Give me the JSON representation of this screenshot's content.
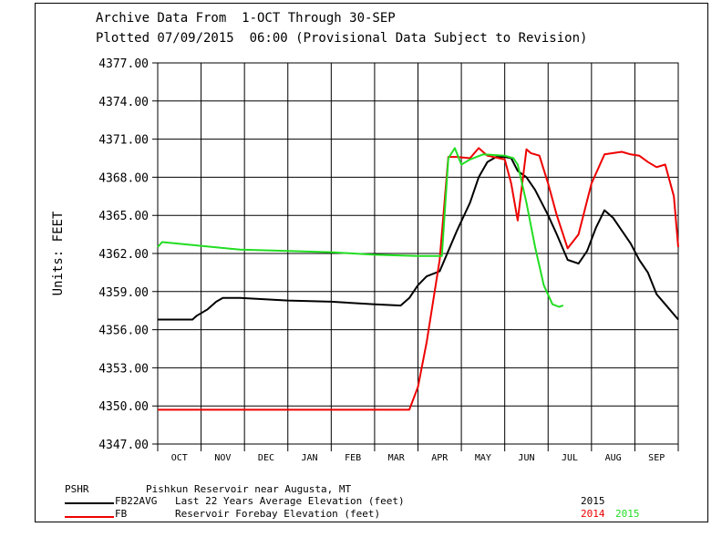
{
  "header": {
    "line1": "Archive Data From  1-OCT Through 30-SEP",
    "line2": "Plotted 07/09/2015  06:00 (Provisional Data Subject to Revision)"
  },
  "footer": {
    "station_code": "PSHR",
    "station_name": "Pishkun Reservoir near Augusta, MT",
    "legend": [
      {
        "code": "FB22AVG",
        "desc": "Last 22 Years Average Elevation (feet)",
        "color": "#000000",
        "years": [
          {
            "text": "2015",
            "color": "#000000"
          }
        ]
      },
      {
        "code": "FB",
        "desc": "Reservoir Forebay Elevation (feet)",
        "color": "#ee0000",
        "years": [
          {
            "text": "2014",
            "color": "#ee0000"
          },
          {
            "text": "2015",
            "color": "#22dd22"
          }
        ]
      }
    ]
  },
  "chart_data": {
    "type": "line",
    "ylabel": "Units:  FEET",
    "ylim": [
      4347,
      4377
    ],
    "y_ticks": [
      "4347.00",
      "4350.00",
      "4353.00",
      "4356.00",
      "4359.00",
      "4362.00",
      "4365.00",
      "4368.00",
      "4371.00",
      "4374.00",
      "4377.00"
    ],
    "months": [
      "OCT",
      "NOV",
      "DEC",
      "JAN",
      "FEB",
      "MAR",
      "APR",
      "MAY",
      "JUN",
      "JUL",
      "AUG",
      "SEP"
    ],
    "xlim": [
      0,
      12
    ],
    "grid": true,
    "series": [
      {
        "name": "Last 22 Years Average Elevation (feet)",
        "color": "#000000",
        "x": [
          0,
          0.8,
          0.9,
          1.15,
          1.35,
          1.5,
          1.9,
          3,
          4,
          5,
          5.6,
          5.8,
          5.9,
          6.0,
          6.2,
          6.5,
          6.7,
          6.9,
          7.2,
          7.4,
          7.6,
          7.8,
          8,
          8.15,
          8.3,
          8.5,
          8.7,
          9,
          9.2,
          9.45,
          9.7,
          9.9,
          10.1,
          10.3,
          10.5,
          10.7,
          10.9,
          11.1,
          11.3,
          11.5,
          11.7,
          12
        ],
        "y": [
          4356.8,
          4356.8,
          4357.1,
          4357.6,
          4358.2,
          4358.5,
          4358.5,
          4358.3,
          4358.2,
          4358.0,
          4357.9,
          4358.5,
          4359.0,
          4359.5,
          4360.2,
          4360.6,
          4362.2,
          4363.8,
          4366.0,
          4368.0,
          4369.2,
          4369.6,
          4369.6,
          4369.5,
          4368.5,
          4368.0,
          4367.0,
          4365.0,
          4363.5,
          4361.5,
          4361.2,
          4362.2,
          4364.0,
          4365.4,
          4364.8,
          4363.8,
          4362.8,
          4361.5,
          4360.5,
          4358.8,
          4358.0,
          4356.8
        ]
      },
      {
        "name": "Reservoir Forebay Elevation (feet) 2014",
        "color": "#ee0000",
        "x": [
          0,
          5.8,
          6.0,
          6.2,
          6.5,
          6.7,
          6.9,
          7.2,
          7.4,
          7.6,
          8,
          8.15,
          8.3,
          8.5,
          8.6,
          8.8,
          9,
          9.2,
          9.45,
          9.7,
          10,
          10.3,
          10.5,
          10.7,
          10.9,
          11.1,
          11.3,
          11.5,
          11.7,
          11.9,
          12
        ],
        "y": [
          4349.7,
          4349.7,
          4351.5,
          4355.0,
          4361.5,
          4369.6,
          4369.6,
          4369.5,
          4370.3,
          4369.7,
          4369.4,
          4367.5,
          4364.6,
          4370.2,
          4369.9,
          4369.7,
          4367.5,
          4365.0,
          4362.4,
          4363.5,
          4367.5,
          4369.8,
          4369.9,
          4370.0,
          4369.8,
          4369.7,
          4369.2,
          4368.8,
          4369.0,
          4366.5,
          4362.5
        ]
      },
      {
        "name": "Reservoir Forebay Elevation (feet) 2015",
        "color": "#22dd22",
        "x": [
          0,
          0.1,
          1.9,
          3,
          4,
          5,
          6.0,
          6.3,
          6.55,
          6.7,
          6.85,
          7.0,
          7.2,
          7.5,
          8.0,
          8.2,
          8.3,
          8.5,
          8.7,
          8.9,
          9.1,
          9.25,
          9.35
        ],
        "y": [
          4362.5,
          4362.9,
          4362.3,
          4362.2,
          4362.1,
          4361.9,
          4361.8,
          4361.8,
          4361.8,
          4369.5,
          4370.3,
          4369.0,
          4369.4,
          4369.8,
          4369.7,
          4369.5,
          4369.0,
          4366.0,
          4362.5,
          4359.5,
          4358.0,
          4357.8,
          4357.9
        ]
      }
    ]
  }
}
